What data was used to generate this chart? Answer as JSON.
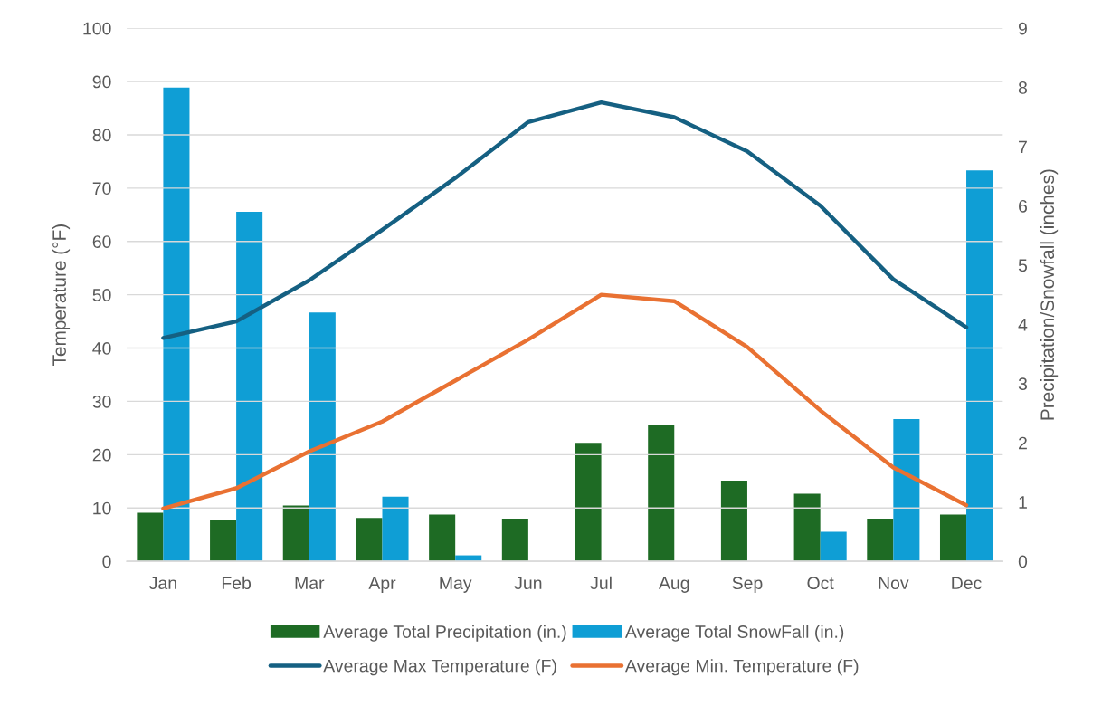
{
  "chart_data": {
    "type": "bar",
    "categories": [
      "Jan",
      "Feb",
      "Mar",
      "Apr",
      "May",
      "Jun",
      "Jul",
      "Aug",
      "Sep",
      "Oct",
      "Nov",
      "Dec"
    ],
    "ylabel": "Temperature (°F)",
    "y2label": "Precipitation/Snowfall (inches)",
    "ylim": [
      0,
      100
    ],
    "yticks": [
      0,
      10,
      20,
      30,
      40,
      50,
      60,
      70,
      80,
      90,
      100
    ],
    "y2lim": [
      0,
      9
    ],
    "y2ticks": [
      0,
      1,
      2,
      3,
      4,
      5,
      6,
      7,
      8,
      9
    ],
    "grid": "y",
    "legend": "bottom",
    "series": [
      {
        "name": "Average Total Precipitation (in.)",
        "axis": "y2",
        "color": "#1e6b24",
        "values": [
          0.82,
          0.7,
          0.94,
          0.73,
          0.79,
          0.72,
          2.0,
          2.31,
          1.36,
          1.14,
          0.72,
          0.79
        ]
      },
      {
        "name": "Average Total SnowFall (in.)",
        "axis": "y2",
        "color": "#0f9ed5",
        "values": [
          8.0,
          5.9,
          4.2,
          1.09,
          0.1,
          null,
          null,
          null,
          null,
          0.5,
          2.4,
          6.6
        ]
      },
      {
        "name": "Average Max Temperature (F)",
        "type": "line",
        "color": "#156082",
        "values": [
          41.9,
          45.0,
          52.7,
          62.2,
          71.9,
          82.4,
          86.1,
          83.3,
          76.9,
          66.7,
          52.9,
          43.9
        ]
      },
      {
        "name": "Average Min. Temperature (F)",
        "type": "line",
        "color": "#e97132",
        "values": [
          9.9,
          13.7,
          20.6,
          26.2,
          33.9,
          41.6,
          50.0,
          48.8,
          40.2,
          28.3,
          17.6,
          10.5
        ]
      }
    ]
  }
}
